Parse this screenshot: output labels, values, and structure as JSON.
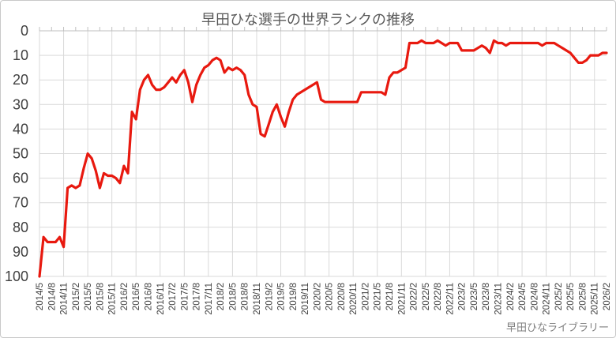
{
  "title": "早田ひな選手の世界ランクの推移",
  "watermark": "早田ひなライブラリー",
  "colors": {
    "line": "#e8190f",
    "grid": "#d9d9d9",
    "axis": "#bfbfbf",
    "tick": "#c0c0c0",
    "axis_label": "#404040",
    "title_text": "#595959",
    "watermark_text": "#7f7f7f"
  },
  "chart_data": {
    "type": "line",
    "title": "早田ひな選手の世界ランクの推移",
    "x_start": "2014/5",
    "x_end": "2026/2",
    "x_step_months": 1,
    "y_axis_reversed": true,
    "ylim": [
      0,
      100
    ],
    "grid": true,
    "legend": false,
    "y_ticks": [
      0,
      10,
      20,
      30,
      40,
      50,
      60,
      70,
      80,
      90,
      100
    ],
    "x_tick_labels": [
      "2014/5",
      "2014/8",
      "2014/11",
      "2015/2",
      "2015/5",
      "2015/8",
      "2015/11",
      "2016/2",
      "2016/5",
      "2016/8",
      "2016/11",
      "2017/2",
      "2017/5",
      "2017/8",
      "2017/11",
      "2018/2",
      "2018/5",
      "2018/8",
      "2018/11",
      "2019/2",
      "2019/5",
      "2019/8",
      "2019/11",
      "2020/2",
      "2020/5",
      "2020/8",
      "2020/11",
      "2021/2",
      "2021/5",
      "2021/8",
      "2021/11",
      "2022/2",
      "2022/5",
      "2022/8",
      "2022/11",
      "2023/2",
      "2023/5",
      "2023/8",
      "2023/11",
      "2024/2",
      "2024/5",
      "2024/8",
      "2024/11",
      "2025/2",
      "2025/5",
      "2025/8",
      "2025/11",
      "2026/2"
    ],
    "values": [
      100,
      84,
      86,
      86,
      86,
      84,
      88,
      64,
      63,
      64,
      63,
      56,
      50,
      52,
      57,
      64,
      58,
      59,
      59,
      60,
      62,
      55,
      58,
      33,
      36,
      24,
      20,
      18,
      22,
      24,
      24,
      23,
      21,
      19,
      21,
      18,
      16,
      21,
      29,
      22,
      18,
      15,
      14,
      12,
      11,
      12,
      17,
      15,
      16,
      15,
      16,
      18,
      26,
      30,
      31,
      42,
      43,
      38,
      33,
      30,
      35,
      39,
      33,
      28,
      26,
      25,
      24,
      23,
      22,
      21,
      28,
      29,
      29,
      29,
      29,
      29,
      29,
      29,
      29,
      29,
      25,
      25,
      25,
      25,
      25,
      25,
      26,
      19,
      17,
      17,
      16,
      15,
      5,
      5,
      5,
      4,
      5,
      5,
      5,
      4,
      5,
      6,
      5,
      5,
      5,
      8,
      8,
      8,
      8,
      7,
      6,
      7,
      9,
      4,
      5,
      5,
      6,
      5,
      5,
      5,
      5,
      5,
      5,
      5,
      5,
      6,
      5,
      5,
      5,
      6,
      7,
      8,
      9,
      11,
      13,
      13,
      12,
      10,
      10,
      10,
      9,
      9
    ]
  }
}
